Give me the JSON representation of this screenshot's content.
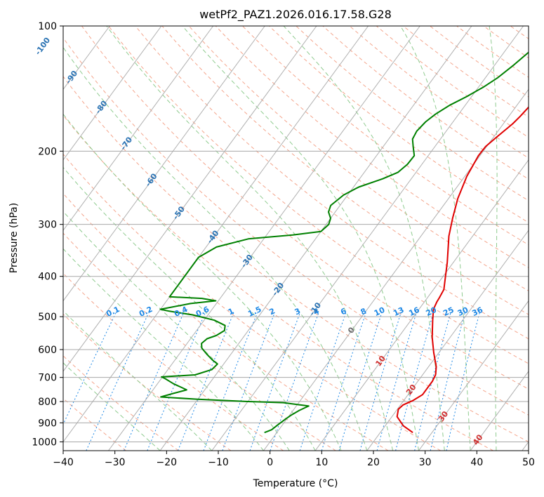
{
  "chart_data": {
    "type": "line",
    "diagram": "skew-T log-P",
    "title": "wetPf2_PAZ1.2026.016.17.58.G28",
    "xlabel": "Temperature (°C)",
    "ylabel": "Pressure (hPa)",
    "xlim": [
      -40,
      50
    ],
    "ylim": [
      1050,
      100
    ],
    "x_ticks": [
      -40,
      -30,
      -20,
      -10,
      0,
      10,
      20,
      30,
      40,
      50
    ],
    "y_ticks": [
      100,
      200,
      300,
      400,
      500,
      600,
      700,
      800,
      900,
      1000
    ],
    "skew_deg_per_decade": 59,
    "series": [
      {
        "name": "temperature",
        "color": "#e00000",
        "points": [
          [
            26.3,
            950
          ],
          [
            23.5,
            915
          ],
          [
            21.0,
            870
          ],
          [
            20.2,
            835
          ],
          [
            20.5,
            815
          ],
          [
            21.8,
            795
          ],
          [
            22.8,
            770
          ],
          [
            22.8,
            745
          ],
          [
            22.8,
            715
          ],
          [
            22.5,
            690
          ],
          [
            21.5,
            660
          ],
          [
            19.0,
            610
          ],
          [
            16.5,
            560
          ],
          [
            14.2,
            510
          ],
          [
            12.8,
            480
          ],
          [
            12.4,
            460
          ],
          [
            12.3,
            450
          ],
          [
            12.0,
            430
          ],
          [
            11.5,
            420
          ],
          [
            8.8,
            370
          ],
          [
            5.4,
            320
          ],
          [
            3.6,
            290
          ],
          [
            1.8,
            260
          ],
          [
            0.4,
            230
          ],
          [
            -0.3,
            205
          ],
          [
            -0.2,
            195
          ],
          [
            0.6,
            185
          ],
          [
            1.8,
            172
          ],
          [
            2.2,
            165
          ],
          [
            2.6,
            155
          ],
          [
            2.8,
            147
          ],
          [
            3.2,
            140
          ],
          [
            3.4,
            135
          ],
          [
            3.5,
            130
          ],
          [
            4.1,
            124
          ],
          [
            5.1,
            118
          ],
          [
            6.0,
            113
          ],
          [
            7.1,
            108
          ],
          [
            8.1,
            104
          ],
          [
            9.1,
            100
          ]
        ]
      },
      {
        "name": "dewpoint",
        "color": "#008000",
        "points": [
          [
            -2.4,
            950
          ],
          [
            -1.4,
            935
          ],
          [
            -0.9,
            910
          ],
          [
            -0.2,
            880
          ],
          [
            0.4,
            860
          ],
          [
            1.2,
            840
          ],
          [
            2.4,
            820
          ],
          [
            -3.0,
            805
          ],
          [
            -10,
            800
          ],
          [
            -20,
            790
          ],
          [
            -27.5,
            780
          ],
          [
            -25.6,
            765
          ],
          [
            -23.5,
            750
          ],
          [
            -24.8,
            740
          ],
          [
            -26.9,
            725
          ],
          [
            -29.2,
            705
          ],
          [
            -30.2,
            698
          ],
          [
            -24.0,
            690
          ],
          [
            -21.5,
            670
          ],
          [
            -21.2,
            650
          ],
          [
            -22.8,
            635
          ],
          [
            -24.7,
            615
          ],
          [
            -26.5,
            595
          ],
          [
            -27.2,
            580
          ],
          [
            -26.8,
            565
          ],
          [
            -25.5,
            555
          ],
          [
            -24.6,
            540
          ],
          [
            -25.2,
            525
          ],
          [
            -28.0,
            510
          ],
          [
            -33.0,
            495
          ],
          [
            -38.0,
            485
          ],
          [
            -40,
            480
          ],
          [
            -35.0,
            465
          ],
          [
            -30.5,
            458
          ],
          [
            -33.5,
            452
          ],
          [
            -40,
            448
          ],
          [
            -40,
            360
          ],
          [
            -38.0,
            340
          ],
          [
            -33.0,
            325
          ],
          [
            -25.0,
            318
          ],
          [
            -20.0,
            312
          ],
          [
            -19.5,
            300
          ],
          [
            -20.0,
            290
          ],
          [
            -21.3,
            280
          ],
          [
            -21.8,
            270
          ],
          [
            -20.8,
            255
          ],
          [
            -19.0,
            244
          ],
          [
            -15.5,
            233
          ],
          [
            -13.5,
            225
          ],
          [
            -12.8,
            215
          ],
          [
            -12.7,
            205
          ],
          [
            -14.2,
            195
          ],
          [
            -15.4,
            187
          ],
          [
            -15.7,
            179
          ],
          [
            -15.3,
            170
          ],
          [
            -14.5,
            163
          ],
          [
            -13.0,
            155
          ],
          [
            -11.0,
            148
          ],
          [
            -9.0,
            140
          ],
          [
            -7.6,
            133
          ],
          [
            -6.3,
            124
          ],
          [
            -5.3,
            116
          ],
          [
            -4.5,
            110
          ],
          [
            -3.8,
            105
          ],
          [
            -3.0,
            100
          ]
        ]
      }
    ],
    "isotherm_labels": [
      "-100",
      "-90",
      "-80",
      "-70",
      "-60",
      "-50",
      "-40",
      "-30",
      "-20",
      "-10",
      "0",
      "10",
      "20",
      "30",
      "40"
    ],
    "mixing_ratio_labels": [
      "0.1",
      "0.2",
      "0.4",
      "0.6",
      "1",
      "1.5",
      "2",
      "3",
      "4",
      "6",
      "8",
      "10",
      "13",
      "16",
      "20",
      "25",
      "30",
      "36"
    ],
    "mixing_ratio_values": [
      0.1,
      0.2,
      0.4,
      0.6,
      1,
      1.5,
      2,
      3,
      4,
      6,
      8,
      10,
      13,
      16,
      20,
      25,
      30,
      36
    ],
    "colors": {
      "isotherm": "#b0b0b0",
      "isotherm_label_neg": "#2c74b4",
      "isotherm_label_pos": "#d03030",
      "isotherm_label_zero": "#707070",
      "dry_adiabat": "#f4a58c",
      "moist_adiabat": "#8fcb8f",
      "mixing_ratio": "#1e88e5",
      "isobar": "#a8a8a8",
      "mixing_ratio_label": "#1e88e5"
    }
  }
}
